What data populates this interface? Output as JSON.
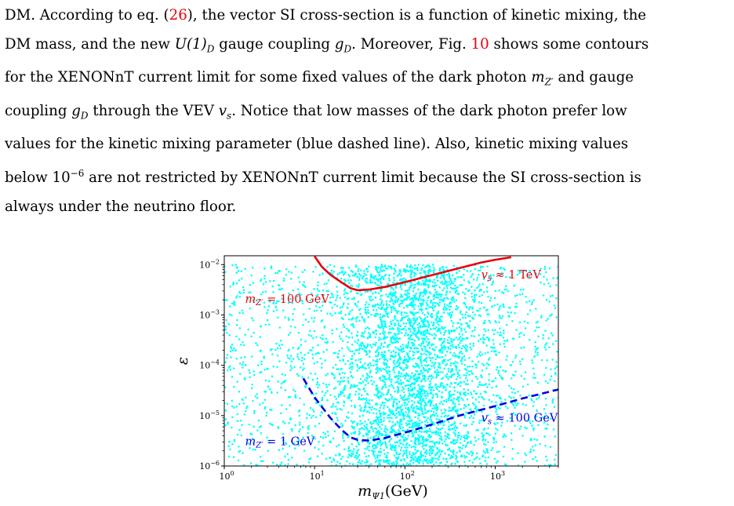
{
  "paragraph": {
    "lines": [
      [
        "DM. According to eq. (",
        {
          "ref": "26"
        },
        "), the vector SI cross-section is a function of kinetic mixing, the"
      ],
      [
        "DM mass, and the new ",
        {
          "math": "U(1)"
        },
        {
          "sub": "D"
        },
        " gauge coupling ",
        {
          "math": "g"
        },
        {
          "sub": "D"
        },
        ". Moreover, Fig. ",
        {
          "ref": "10"
        },
        " shows some contours"
      ],
      [
        "for the XENONnT current limit for some fixed values of the dark photon ",
        {
          "math": "m"
        },
        {
          "sub": "Z′"
        },
        " and gauge"
      ],
      [
        "coupling ",
        {
          "math": "g"
        },
        {
          "sub": "D"
        },
        " through the VEV ",
        {
          "math": "v"
        },
        {
          "sub": "s"
        },
        ". Notice that low masses of the dark photon prefer low"
      ],
      [
        "values for the kinetic mixing parameter (blue dashed line). Also, kinetic mixing values"
      ],
      [
        "below 10",
        {
          "sup": "−6"
        },
        " are not restricted by XENONnT current limit because the SI cross-section is"
      ],
      [
        "always under the neutrino floor."
      ]
    ]
  },
  "chart_data": {
    "type": "scatter",
    "xscale": "log",
    "yscale": "log",
    "xlim": [
      1,
      5000
    ],
    "ylim": [
      1e-06,
      0.015
    ],
    "xlabel": "m_{Ψ1}(GeV)",
    "ylabel": "ε",
    "xticks": [
      {
        "base": "10",
        "exp": "0"
      },
      {
        "base": "10",
        "exp": "1"
      },
      {
        "base": "10",
        "exp": "2"
      },
      {
        "base": "10",
        "exp": "3"
      }
    ],
    "yticks": [
      {
        "base": "10",
        "exp": "−6"
      },
      {
        "base": "10",
        "exp": "−5"
      },
      {
        "base": "10",
        "exp": "−4"
      },
      {
        "base": "10",
        "exp": "−3"
      },
      {
        "base": "10",
        "exp": "−2"
      }
    ],
    "scatter_color": "#00ffff",
    "series": [
      {
        "style": "solid",
        "color": "#e8000b",
        "points": [
          [
            10,
            0.0146
          ],
          [
            12,
            0.0091
          ],
          [
            15,
            0.0063
          ],
          [
            20,
            0.0044
          ],
          [
            25,
            0.0034
          ],
          [
            30,
            0.0031
          ],
          [
            40,
            0.0032
          ],
          [
            60,
            0.0036
          ],
          [
            100,
            0.0045
          ],
          [
            200,
            0.0062
          ],
          [
            400,
            0.0085
          ],
          [
            700,
            0.011
          ],
          [
            1000,
            0.0125
          ],
          [
            1500,
            0.014
          ]
        ]
      },
      {
        "style": "dashed",
        "color": "#0000dd",
        "points": [
          [
            7.5,
            5.5e-05
          ],
          [
            10,
            2.3e-05
          ],
          [
            15,
            9e-06
          ],
          [
            20,
            5.2e-06
          ],
          [
            25,
            3.7e-06
          ],
          [
            30,
            3.3e-06
          ],
          [
            40,
            3.2e-06
          ],
          [
            60,
            3.6e-06
          ],
          [
            100,
            4.6e-06
          ],
          [
            200,
            6.7e-06
          ],
          [
            400,
            1e-05
          ],
          [
            1000,
            1.55e-05
          ],
          [
            2000,
            2.2e-05
          ],
          [
            5000,
            3.3e-05
          ]
        ]
      }
    ],
    "annotations": [
      {
        "id": "mz100",
        "color": "#e8000b",
        "base": "m",
        "sub": "Z′",
        "text": " = 100 GeV",
        "x": 1.7,
        "y": 0.00175
      },
      {
        "id": "vs1tev",
        "color": "#e8000b",
        "base": "v",
        "sub": "s",
        "text": " ≈ 1 TeV",
        "x": 700,
        "y": 0.0053
      },
      {
        "id": "mz1",
        "color": "#0000dd",
        "base": "m",
        "sub": "Z′",
        "text": " = 1 GeV",
        "x": 1.7,
        "y": 2.6e-06
      },
      {
        "id": "vs100",
        "color": "#0000dd",
        "base": "v",
        "sub": "s",
        "text": " ≈ 100 GeV",
        "x": 700,
        "y": 7.6e-06
      }
    ]
  }
}
